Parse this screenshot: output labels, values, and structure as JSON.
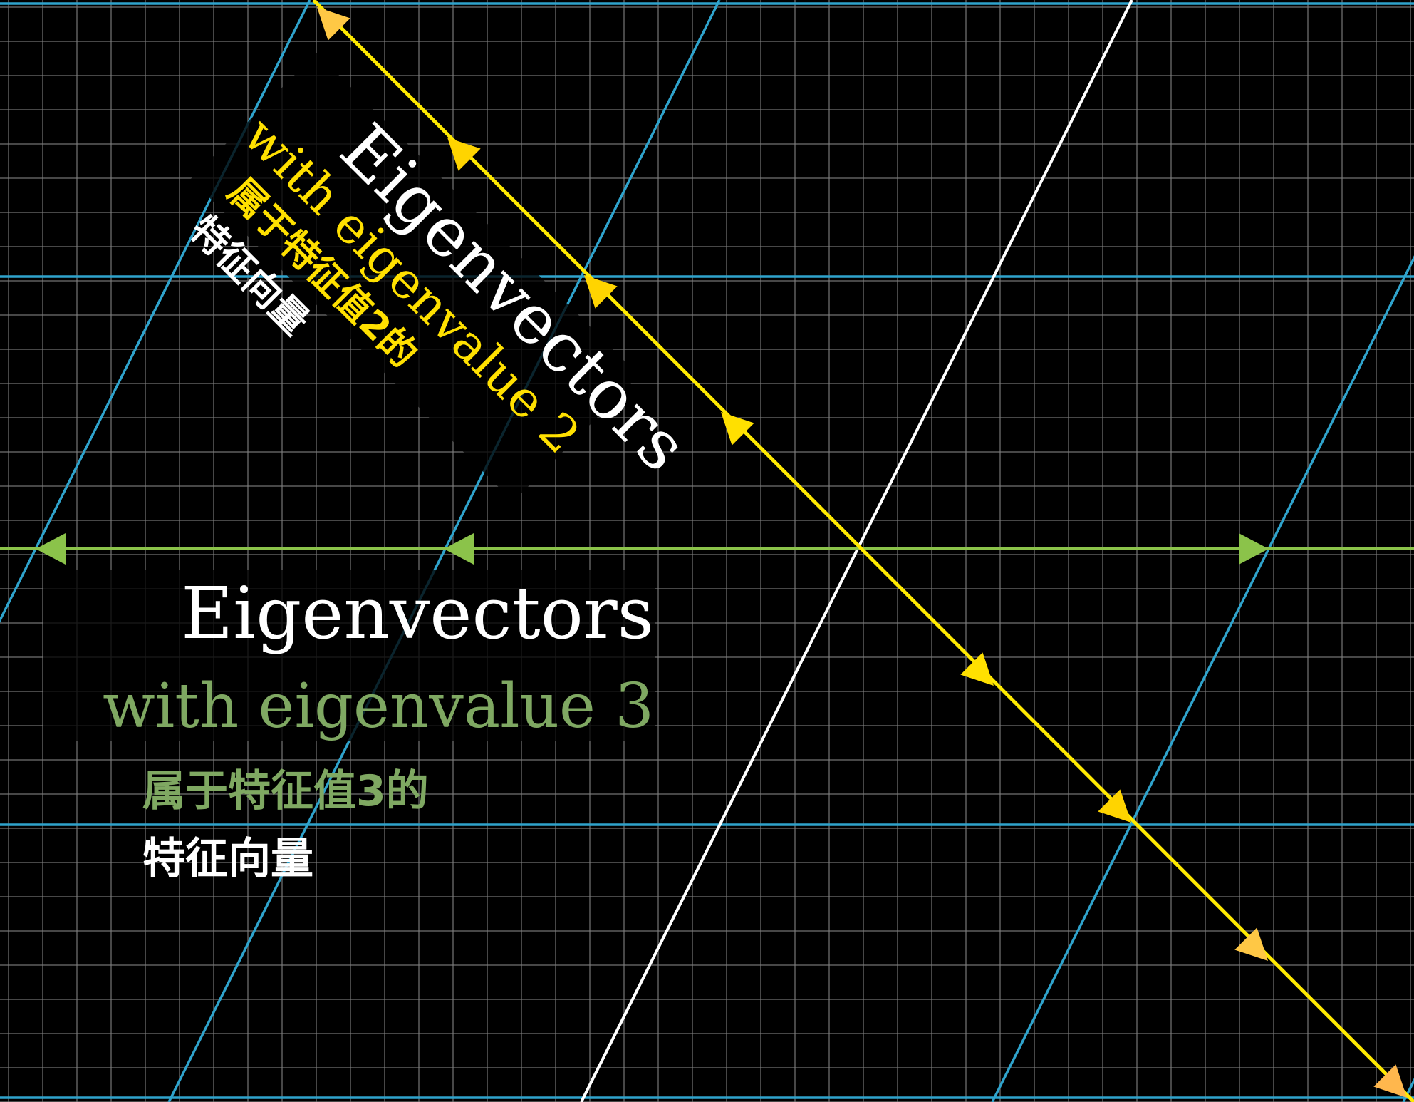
{
  "colors": {
    "background": "#000000",
    "fine_grid": "#7f7f7f",
    "transformed_grid": "#2fa3cc",
    "eigen_line_2": "#ffd400",
    "eigen_line_3": "#8bc34a",
    "basis_line": "#ffffff",
    "text_white": "#ffffff",
    "text_yellow": "#ffe000",
    "text_green": "#7fa862"
  },
  "labels": {
    "eigen2": {
      "title": "Eigenvectors",
      "subtitle": "with eigenvalue 2",
      "chinese_line1": "属于特征值2的",
      "chinese_line2": "特征向量"
    },
    "eigen3": {
      "title": "Eigenvectors",
      "subtitle": "with eigenvalue 3",
      "chinese_line1": "属于特征值3的",
      "chinese_line2": "特征向量"
    }
  }
}
